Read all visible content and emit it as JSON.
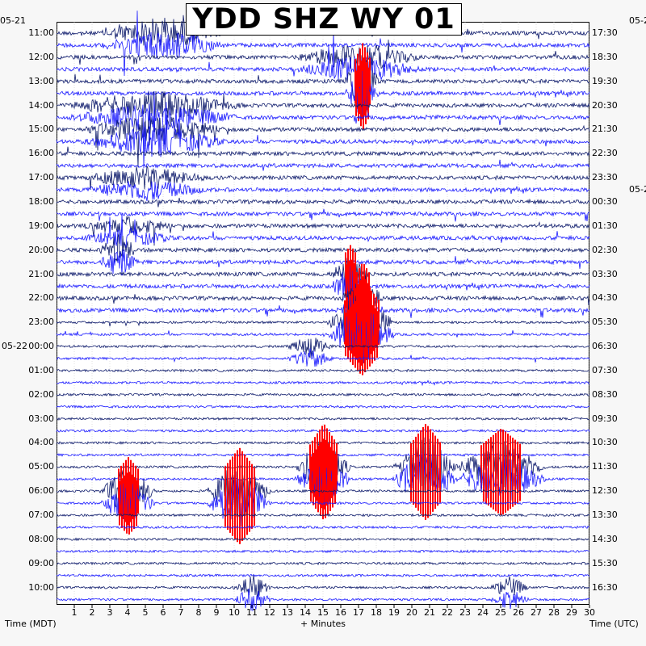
{
  "title": "YDD SHZ WY 01",
  "left_date_top": "05-21",
  "right_date_top": "05-2",
  "left_date_mid": "05-22",
  "left_axis_label": "Time (MDT)",
  "right_axis_label": "Time (UTC)",
  "x_axis_label": "+ Minutes",
  "colors": {
    "trace_dark": "#0d1a6b",
    "trace_blue": "#1a1aff",
    "clipped": "#ff0000",
    "grid": "#c0c0c0"
  },
  "chart_data": {
    "type": "helicorder",
    "title": "YDD SHZ WY 01",
    "xlabel": "+ Minutes",
    "ylabel_left": "Time (MDT)",
    "ylabel_right": "Time (UTC)",
    "xlim": [
      0,
      30
    ],
    "x_ticks": [
      "1",
      "2",
      "3",
      "4",
      "5",
      "6",
      "7",
      "8",
      "9",
      "10",
      "11",
      "12",
      "13",
      "14",
      "15",
      "16",
      "17",
      "18",
      "19",
      "20",
      "21",
      "22",
      "23",
      "24",
      "25",
      "26",
      "27",
      "28",
      "29",
      "30"
    ],
    "left_time_labels": [
      "11:00",
      "12:00",
      "13:00",
      "14:00",
      "15:00",
      "16:00",
      "17:00",
      "18:00",
      "19:00",
      "20:00",
      "21:00",
      "22:00",
      "23:00",
      "00:00",
      "01:00",
      "02:00",
      "03:00",
      "04:00",
      "05:00",
      "06:00",
      "07:00",
      "08:00",
      "09:00",
      "10:00"
    ],
    "right_time_labels": [
      "17:30",
      "18:30",
      "19:30",
      "20:30",
      "21:30",
      "22:30",
      "23:30",
      "00:30",
      "01:30",
      "02:30",
      "03:30",
      "04:30",
      "05:30",
      "06:30",
      "07:30",
      "08:30",
      "09:30",
      "10:30",
      "11:30",
      "12:30",
      "13:30",
      "14:30",
      "15:30",
      "16:30"
    ],
    "rows_per_hour": 2,
    "row_count": 48,
    "bursts": [
      {
        "hour": 0,
        "minute_start": 3,
        "minute_end": 9,
        "amplitude": 0.9,
        "clipped": false
      },
      {
        "hour": 1,
        "minute_start": 14,
        "minute_end": 20,
        "amplitude": 0.8,
        "clipped": false
      },
      {
        "hour": 2,
        "minute_start": 16.8,
        "minute_end": 17.6,
        "amplitude": 1.6,
        "clipped": true
      },
      {
        "hour": 3,
        "minute_start": 1,
        "minute_end": 10,
        "amplitude": 0.8,
        "clipped": false
      },
      {
        "hour": 4,
        "minute_start": 2,
        "minute_end": 9,
        "amplitude": 0.9,
        "clipped": false
      },
      {
        "hour": 6,
        "minute_start": 2,
        "minute_end": 8,
        "amplitude": 0.6,
        "clipped": false
      },
      {
        "hour": 8,
        "minute_start": 2,
        "minute_end": 6,
        "amplitude": 0.5,
        "clipped": false
      },
      {
        "hour": 9,
        "minute_start": 3,
        "minute_end": 4,
        "amplitude": 0.9,
        "clipped": false
      },
      {
        "hour": 10,
        "minute_start": 16,
        "minute_end": 17,
        "amplitude": 1.2,
        "clipped": true
      },
      {
        "hour": 11,
        "minute_start": 16.6,
        "minute_end": 17.8,
        "amplitude": 1.5,
        "clipped": true
      },
      {
        "hour": 12,
        "minute_start": 15.8,
        "minute_end": 18.5,
        "amplitude": 1.8,
        "clipped": true
      },
      {
        "hour": 13,
        "minute_start": 13.5,
        "minute_end": 15,
        "amplitude": 0.6,
        "clipped": false
      },
      {
        "hour": 18,
        "minute_start": 14,
        "minute_end": 16,
        "amplitude": 1.8,
        "clipped": true
      },
      {
        "hour": 18,
        "minute_start": 19.5,
        "minute_end": 22,
        "amplitude": 1.8,
        "clipped": true
      },
      {
        "hour": 18,
        "minute_start": 23,
        "minute_end": 27,
        "amplitude": 1.6,
        "clipped": true
      },
      {
        "hour": 19,
        "minute_start": 9,
        "minute_end": 11.5,
        "amplitude": 1.8,
        "clipped": true
      },
      {
        "hour": 19,
        "minute_start": 3,
        "minute_end": 5,
        "amplitude": 1.4,
        "clipped": true
      },
      {
        "hour": 23,
        "minute_start": 10.5,
        "minute_end": 11.5,
        "amplitude": 0.7,
        "clipped": false
      },
      {
        "hour": 23,
        "minute_start": 25,
        "minute_end": 26,
        "amplitude": 0.6,
        "clipped": false
      }
    ]
  }
}
